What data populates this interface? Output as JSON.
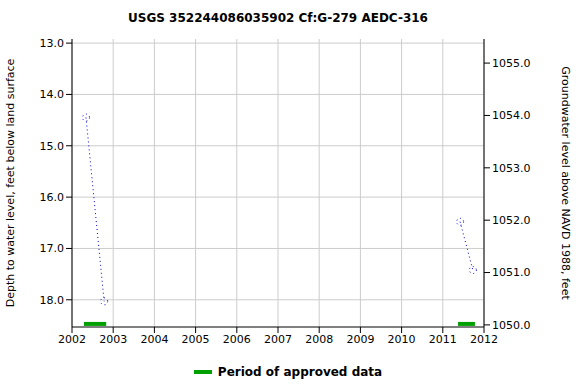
{
  "chart_data": {
    "type": "line",
    "title": "USGS 352244086035902 Cf:G-279 AEDC-316",
    "y_label": "Depth to water level, feet below land surface",
    "y2_label": "Groundwater level above NAVD 1988, feet",
    "xlim": [
      2002,
      2012
    ],
    "xticks": [
      2002,
      2003,
      2004,
      2005,
      2006,
      2007,
      2008,
      2009,
      2010,
      2011,
      2012
    ],
    "ylim": [
      18.53,
      12.92
    ],
    "yticks": [
      {
        "value": 13,
        "label": "13.0"
      },
      {
        "value": 14,
        "label": "14.0"
      },
      {
        "value": 15,
        "label": "15.0"
      },
      {
        "value": 16,
        "label": "16.0"
      },
      {
        "value": 17,
        "label": "17.0"
      },
      {
        "value": 18,
        "label": "18.0"
      }
    ],
    "y2lim": [
      1049.96,
      1055.46
    ],
    "y2ticks": [
      {
        "value": 1050,
        "label": "1050.0"
      },
      {
        "value": 1051,
        "label": "1051.0"
      },
      {
        "value": 1052,
        "label": "1052.0"
      },
      {
        "value": 1053,
        "label": "1053.0"
      },
      {
        "value": 1054,
        "label": "1054.0"
      },
      {
        "value": 1055,
        "label": "1055.0"
      }
    ],
    "grid": true,
    "series": [
      {
        "color": "#0000cc",
        "marker": "circle",
        "line_style": "dotted",
        "x": [
          2002.34,
          2002.78
        ],
        "values": [
          14.45,
          18.03
        ]
      },
      {
        "color": "#0000cc",
        "marker": "circle",
        "line_style": "dotted",
        "x": [
          2011.42,
          2011.73
        ],
        "values": [
          16.48,
          17.42
        ]
      }
    ],
    "approved_data": {
      "name": "Period of approved data",
      "color": "#00a000",
      "level": 18.47,
      "periods": [
        [
          2002.29,
          2002.83
        ],
        [
          2011.37,
          2011.78
        ]
      ]
    }
  }
}
